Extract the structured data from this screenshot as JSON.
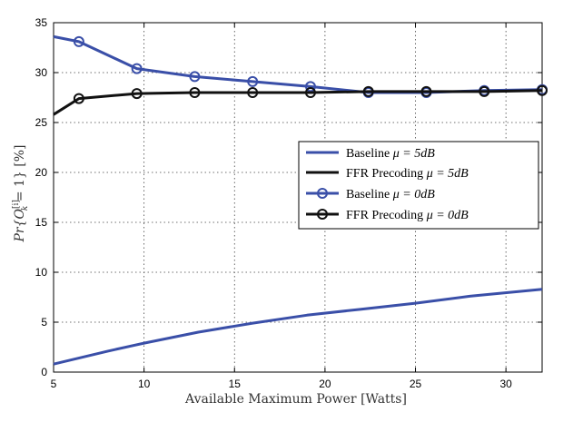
{
  "chart_data": {
    "type": "line",
    "xlabel": "Available Maximum Power [Watts]",
    "ylabel_parts": {
      "prefix": "Pr{",
      "symbol": "O",
      "superscript": "[i]",
      "subscript": "k",
      "suffix": " = 1} [%]"
    },
    "xlim": [
      5,
      32
    ],
    "ylim": [
      0,
      35
    ],
    "xticks": [
      5,
      10,
      15,
      20,
      25,
      30
    ],
    "yticks": [
      0,
      5,
      10,
      15,
      20,
      25,
      30,
      35
    ],
    "grid": true,
    "legend_position": "center-right",
    "series": [
      {
        "name": "Baseline μ = 5dB",
        "label_text": "Baseline ",
        "label_math": "μ = 5dB",
        "color": "#3a4fa8",
        "marker": "none",
        "x": [
          5,
          8,
          10,
          13,
          16,
          19,
          22,
          25,
          28,
          32
        ],
        "y": [
          0.8,
          2.1,
          2.9,
          4.0,
          4.9,
          5.7,
          6.3,
          6.9,
          7.6,
          8.3
        ]
      },
      {
        "name": "FFR Precoding μ = 5dB",
        "label_text": "FFR Precoding ",
        "label_math": "μ = 5dB",
        "color": "#111111",
        "marker": "none",
        "x": [],
        "y": []
      },
      {
        "name": "Baseline μ = 0dB",
        "label_text": "Baseline ",
        "label_math": "μ = 0dB",
        "color": "#3a4fa8",
        "marker": "circle",
        "x": [
          5,
          6.4,
          9.6,
          12.8,
          16,
          19.2,
          22.4,
          25.6,
          28.8,
          32
        ],
        "y": [
          33.6,
          33.1,
          30.4,
          29.6,
          29.1,
          28.6,
          28.0,
          28.0,
          28.2,
          28.3
        ]
      },
      {
        "name": "FFR Precoding μ = 0dB",
        "label_text": "FFR Precoding ",
        "label_math": "μ = 0dB",
        "color": "#111111",
        "marker": "circle",
        "x": [
          5,
          6.4,
          9.6,
          12.8,
          16,
          19.2,
          22.4,
          25.6,
          28.8,
          32
        ],
        "y": [
          25.8,
          27.4,
          27.9,
          28.0,
          28.0,
          28.0,
          28.1,
          28.1,
          28.1,
          28.2
        ]
      }
    ]
  }
}
